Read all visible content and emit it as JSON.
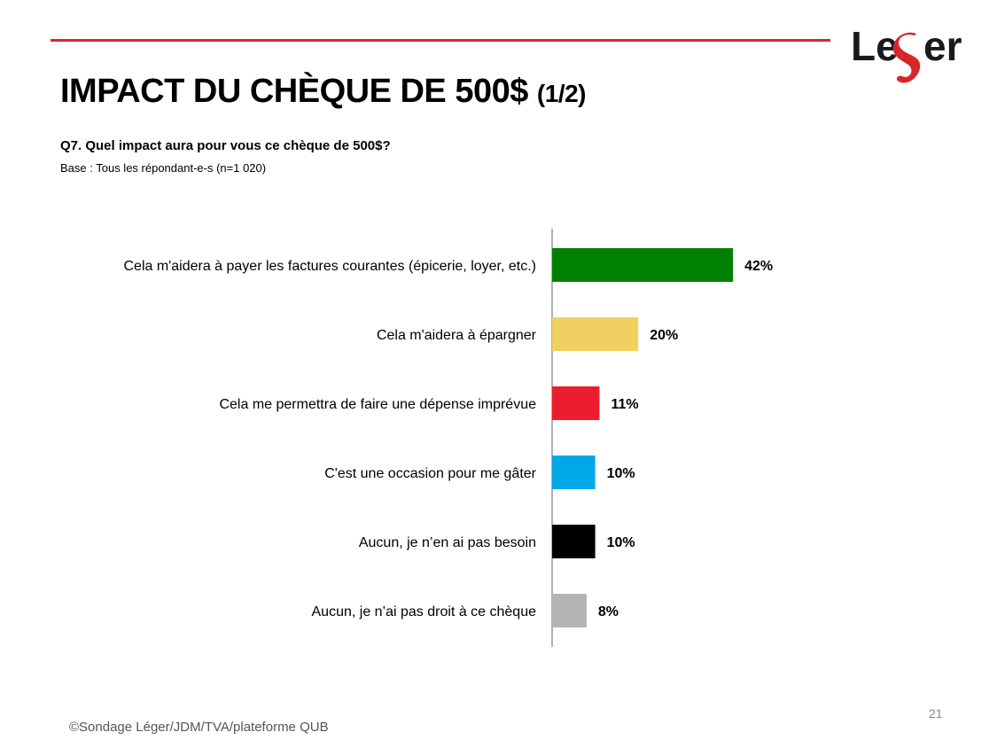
{
  "header": {
    "title": "IMPACT DU CHÈQUE DE 500$",
    "title_suffix": "(1/2)",
    "logo_text_left": "Le",
    "logo_text_right": "er",
    "rule_color": "#d7262b"
  },
  "question": "Q7. Quel impact aura pour vous ce chèque de 500$?",
  "base": "Base : Tous les répondant-e-s (n=1 020)",
  "chart_data": {
    "type": "bar",
    "orientation": "horizontal",
    "title": "Q7. Quel impact aura pour vous ce chèque de 500$?",
    "xlabel": "",
    "ylabel": "",
    "xlim": [
      0,
      100
    ],
    "categories": [
      "Cela m'aidera à payer les factures courantes (épicerie, loyer, etc.)",
      "Cela m'aidera à épargner",
      "Cela me permettra de faire une dépense imprévue",
      "C'est une occasion pour me gâter",
      "Aucun, je n’en ai pas besoin",
      "Aucun, je n’ai pas droit à ce chèque"
    ],
    "values": [
      42,
      20,
      11,
      10,
      10,
      8
    ],
    "labels": [
      "42%",
      "20%",
      "11%",
      "10%",
      "10%",
      "8%"
    ],
    "colors": [
      "#008000",
      "#f0d060",
      "#ed1c2e",
      "#00a8e8",
      "#000000",
      "#b4b4b4"
    ]
  },
  "footer": "©Sondage Léger/JDM/TVA/plateforme QUB",
  "page_number": "21"
}
